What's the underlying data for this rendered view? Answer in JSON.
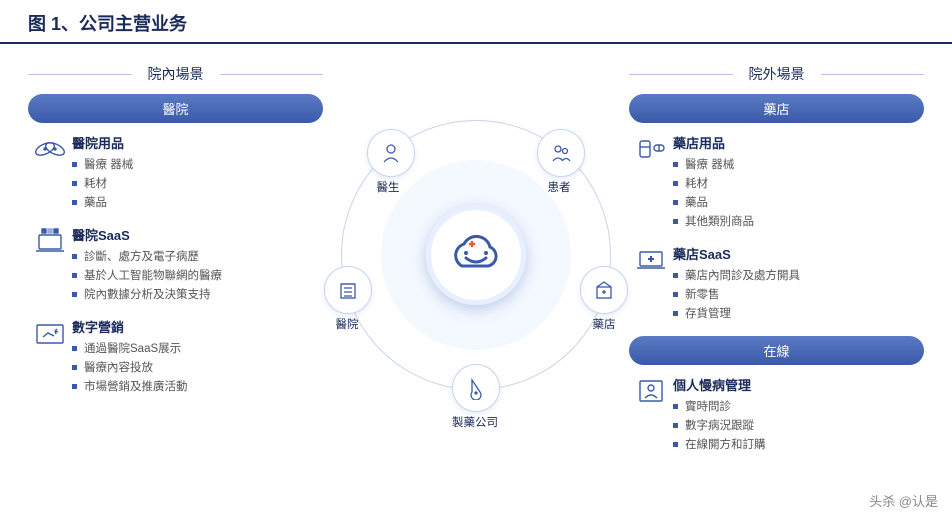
{
  "title": "图 1、公司主营业务",
  "colors": {
    "primary": "#1a2a5a",
    "pill_top": "#5a7ac4",
    "pill_bottom": "#3a5aa8",
    "bullet": "#3a5aa8",
    "ring": "#c8d4ec",
    "ring_fill": "#f4f8ff",
    "text_muted": "#555",
    "scene_line": "#b8c4e0"
  },
  "left": {
    "scene": "院內場景",
    "pill": "醫院",
    "sections": [
      {
        "icon": "bandage-icon",
        "title": "醫院用品",
        "items": [
          "醫療 器械",
          "耗材",
          "藥品"
        ]
      },
      {
        "icon": "laptop-saas-icon",
        "title": "醫院SaaS",
        "items": [
          "診斷、處方及電子病歷",
          "基於人工智能物聯網的醫療",
          "院內數據分析及決策支持"
        ]
      },
      {
        "icon": "megaphone-icon",
        "title": "數字營銷",
        "items": [
          "通過醫院SaaS展示",
          "醫療內容投放",
          "市場營銷及推廣活動"
        ]
      }
    ]
  },
  "right": {
    "scene": "院外場景",
    "pill1": "藥店",
    "pill2": "在線",
    "sections1": [
      {
        "icon": "medicine-icon",
        "title": "藥店用品",
        "items": [
          "醫療 器械",
          "耗材",
          "藥品",
          "其他類別商品"
        ]
      },
      {
        "icon": "laptop-plus-icon",
        "title": "藥店SaaS",
        "items": [
          "藥店內問診及處方開具",
          "新零售",
          "存貨管理"
        ]
      }
    ],
    "sections2": [
      {
        "icon": "doctor-icon",
        "title": "個人慢病管理",
        "items": [
          "實時問診",
          "數字病況跟蹤",
          "在線開方和訂購"
        ]
      }
    ]
  },
  "center": {
    "nodes": [
      {
        "label": "醫生",
        "angle": -130,
        "icon": "doctor"
      },
      {
        "label": "患者",
        "angle": -50,
        "icon": "patient"
      },
      {
        "label": "藥店",
        "angle": 15,
        "icon": "pharmacy"
      },
      {
        "label": "製藥公司",
        "angle": 90,
        "icon": "pharma-co"
      },
      {
        "label": "醫院",
        "angle": 165,
        "icon": "hospital"
      }
    ],
    "radius": 133
  },
  "watermark": "头杀 @认是"
}
